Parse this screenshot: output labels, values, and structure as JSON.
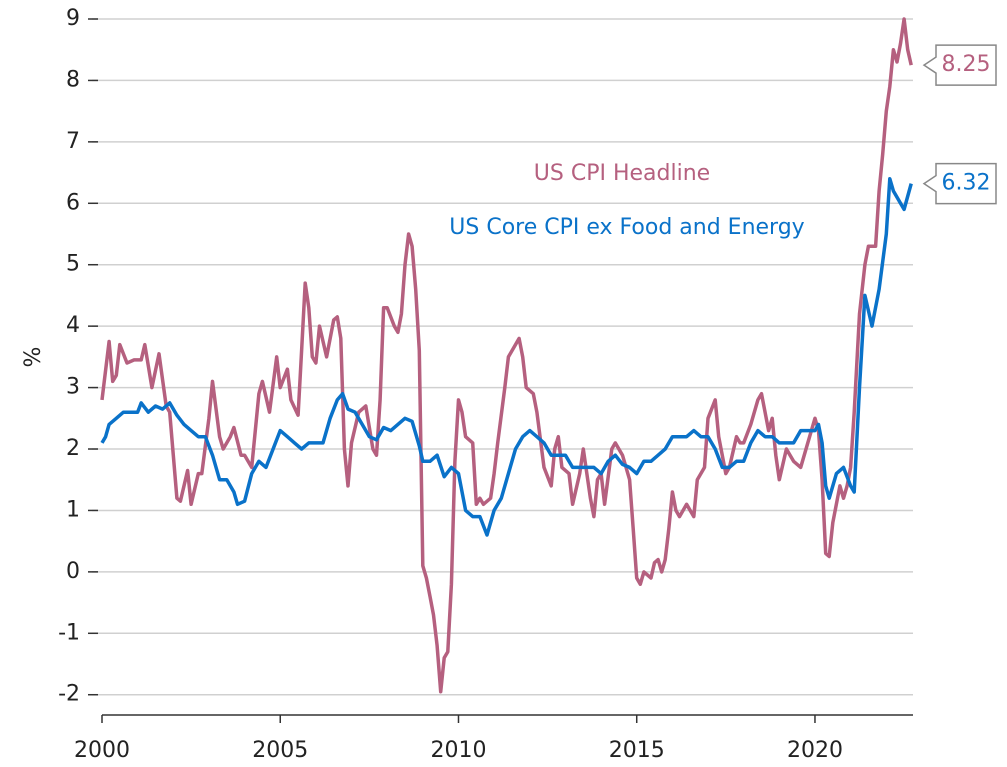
{
  "chart_data": {
    "type": "line",
    "y_label": "%",
    "annotations": [
      {
        "text": "US CPI Headline",
        "color": "#b5607f"
      },
      {
        "text": "US Core CPI ex Food and Energy",
        "color": "#0a72c9"
      }
    ],
    "xlim": [
      2000,
      2022.75
    ],
    "xticks": [
      2000,
      2005,
      2010,
      2015,
      2020
    ],
    "ylim": [
      -2.33,
      9
    ],
    "yticks": [
      -2,
      -1,
      0,
      1,
      2,
      3,
      4,
      5,
      6,
      7,
      8,
      9
    ],
    "grid": true,
    "series": [
      {
        "name": "US CPI Headline",
        "color": "#b5607f",
        "x": [
          2000.0,
          2000.2,
          2000.3,
          2000.4,
          2000.5,
          2000.7,
          2000.9,
          2001.1,
          2001.2,
          2001.4,
          2001.6,
          2001.8,
          2001.9,
          2002.0,
          2002.1,
          2002.2,
          2002.4,
          2002.5,
          2002.7,
          2002.8,
          2003.0,
          2003.1,
          2003.3,
          2003.4,
          2003.6,
          2003.7,
          2003.9,
          2004.0,
          2004.2,
          2004.4,
          2004.5,
          2004.7,
          2004.9,
          2005.0,
          2005.2,
          2005.3,
          2005.5,
          2005.6,
          2005.7,
          2005.8,
          2005.9,
          2006.0,
          2006.1,
          2006.3,
          2006.5,
          2006.6,
          2006.7,
          2006.8,
          2006.9,
          2007.0,
          2007.2,
          2007.4,
          2007.6,
          2007.7,
          2007.8,
          2007.9,
          2008.0,
          2008.2,
          2008.3,
          2008.4,
          2008.5,
          2008.6,
          2008.7,
          2008.8,
          2008.9,
          2009.0,
          2009.1,
          2009.2,
          2009.3,
          2009.4,
          2009.5,
          2009.6,
          2009.7,
          2009.8,
          2009.9,
          2010.0,
          2010.1,
          2010.2,
          2010.4,
          2010.5,
          2010.6,
          2010.7,
          2010.9,
          2011.0,
          2011.1,
          2011.3,
          2011.4,
          2011.6,
          2011.7,
          2011.8,
          2011.9,
          2012.1,
          2012.2,
          2012.4,
          2012.6,
          2012.7,
          2012.8,
          2012.9,
          2013.1,
          2013.2,
          2013.4,
          2013.5,
          2013.7,
          2013.8,
          2013.9,
          2014.0,
          2014.1,
          2014.3,
          2014.4,
          2014.6,
          2014.8,
          2014.9,
          2015.0,
          2015.1,
          2015.2,
          2015.4,
          2015.5,
          2015.6,
          2015.7,
          2015.8,
          2015.9,
          2016.0,
          2016.1,
          2016.2,
          2016.4,
          2016.6,
          2016.7,
          2016.9,
          2017.0,
          2017.2,
          2017.3,
          2017.5,
          2017.6,
          2017.8,
          2017.9,
          2018.0,
          2018.2,
          2018.4,
          2018.5,
          2018.7,
          2018.8,
          2018.9,
          2019.0,
          2019.2,
          2019.4,
          2019.6,
          2019.8,
          2020.0,
          2020.1,
          2020.2,
          2020.3,
          2020.4,
          2020.5,
          2020.7,
          2020.8,
          2020.9,
          2021.0,
          2021.1,
          2021.25,
          2021.4,
          2021.5,
          2021.7,
          2021.8,
          2021.9,
          2022.0,
          2022.1,
          2022.2,
          2022.3,
          2022.4,
          2022.5,
          2022.6,
          2022.7
        ],
        "values": [
          2.8,
          3.75,
          3.1,
          3.2,
          3.7,
          3.4,
          3.45,
          3.45,
          3.7,
          3.0,
          3.55,
          2.7,
          2.6,
          1.9,
          1.2,
          1.15,
          1.65,
          1.1,
          1.6,
          1.6,
          2.5,
          3.1,
          2.2,
          2.0,
          2.2,
          2.35,
          1.9,
          1.9,
          1.7,
          2.9,
          3.1,
          2.6,
          3.5,
          3.0,
          3.3,
          2.8,
          2.55,
          3.6,
          4.7,
          4.3,
          3.5,
          3.4,
          4.0,
          3.5,
          4.1,
          4.15,
          3.8,
          2.0,
          1.4,
          2.1,
          2.6,
          2.7,
          2.0,
          1.9,
          2.8,
          4.3,
          4.3,
          4.0,
          3.9,
          4.2,
          5.0,
          5.5,
          5.3,
          4.6,
          3.6,
          0.1,
          -0.1,
          -0.4,
          -0.7,
          -1.2,
          -1.95,
          -1.4,
          -1.3,
          -0.2,
          1.8,
          2.8,
          2.6,
          2.2,
          2.1,
          1.1,
          1.2,
          1.1,
          1.2,
          1.6,
          2.1,
          3.0,
          3.5,
          3.7,
          3.8,
          3.5,
          3.0,
          2.9,
          2.6,
          1.7,
          1.4,
          2.0,
          2.2,
          1.7,
          1.6,
          1.1,
          1.6,
          2.0,
          1.2,
          0.9,
          1.5,
          1.6,
          1.1,
          2.0,
          2.1,
          1.9,
          1.5,
          0.7,
          -0.1,
          -0.2,
          0.0,
          -0.1,
          0.15,
          0.2,
          0.0,
          0.2,
          0.7,
          1.3,
          1.0,
          0.9,
          1.1,
          0.9,
          1.5,
          1.7,
          2.5,
          2.8,
          2.2,
          1.6,
          1.7,
          2.2,
          2.1,
          2.1,
          2.4,
          2.8,
          2.9,
          2.3,
          2.5,
          1.9,
          1.5,
          2.0,
          1.8,
          1.7,
          2.1,
          2.5,
          2.3,
          1.5,
          0.3,
          0.25,
          0.8,
          1.4,
          1.2,
          1.4,
          1.7,
          2.6,
          4.2,
          5.0,
          5.3,
          5.3,
          6.2,
          6.8,
          7.5,
          7.9,
          8.5,
          8.3,
          8.6,
          9.0,
          8.5,
          8.25
        ]
      },
      {
        "name": "US Core CPI ex Food and Energy",
        "color": "#0a72c9",
        "x": [
          2000.0,
          2000.1,
          2000.2,
          2000.4,
          2000.6,
          2000.8,
          2001.0,
          2001.1,
          2001.3,
          2001.5,
          2001.7,
          2001.9,
          2002.1,
          2002.3,
          2002.5,
          2002.7,
          2002.9,
          2003.1,
          2003.3,
          2003.5,
          2003.7,
          2003.8,
          2004.0,
          2004.2,
          2004.4,
          2004.6,
          2004.8,
          2005.0,
          2005.2,
          2005.4,
          2005.6,
          2005.8,
          2006.0,
          2006.2,
          2006.4,
          2006.6,
          2006.75,
          2006.9,
          2007.1,
          2007.3,
          2007.5,
          2007.7,
          2007.9,
          2008.1,
          2008.3,
          2008.5,
          2008.7,
          2008.9,
          2009.0,
          2009.2,
          2009.4,
          2009.6,
          2009.8,
          2010.0,
          2010.2,
          2010.4,
          2010.6,
          2010.8,
          2011.0,
          2011.2,
          2011.4,
          2011.6,
          2011.8,
          2012.0,
          2012.2,
          2012.4,
          2012.6,
          2012.8,
          2013.0,
          2013.2,
          2013.4,
          2013.6,
          2013.8,
          2014.0,
          2014.2,
          2014.4,
          2014.6,
          2014.8,
          2015.0,
          2015.2,
          2015.4,
          2015.6,
          2015.8,
          2016.0,
          2016.2,
          2016.4,
          2016.6,
          2016.8,
          2017.0,
          2017.2,
          2017.4,
          2017.6,
          2017.8,
          2018.0,
          2018.2,
          2018.4,
          2018.6,
          2018.8,
          2019.0,
          2019.2,
          2019.4,
          2019.6,
          2019.8,
          2020.0,
          2020.1,
          2020.2,
          2020.3,
          2020.4,
          2020.6,
          2020.8,
          2021.0,
          2021.1,
          2021.25,
          2021.4,
          2021.6,
          2021.8,
          2022.0,
          2022.1,
          2022.2,
          2022.4,
          2022.5,
          2022.7
        ],
        "values": [
          2.1,
          2.2,
          2.4,
          2.5,
          2.6,
          2.6,
          2.6,
          2.75,
          2.6,
          2.7,
          2.65,
          2.75,
          2.55,
          2.4,
          2.3,
          2.2,
          2.2,
          1.9,
          1.5,
          1.5,
          1.3,
          1.1,
          1.15,
          1.6,
          1.8,
          1.7,
          2.0,
          2.3,
          2.2,
          2.1,
          2.0,
          2.1,
          2.1,
          2.1,
          2.5,
          2.8,
          2.9,
          2.65,
          2.6,
          2.4,
          2.2,
          2.15,
          2.35,
          2.3,
          2.4,
          2.5,
          2.45,
          2.05,
          1.8,
          1.8,
          1.9,
          1.55,
          1.7,
          1.6,
          1.0,
          0.9,
          0.9,
          0.6,
          1.0,
          1.2,
          1.6,
          2.0,
          2.2,
          2.3,
          2.2,
          2.1,
          1.9,
          1.9,
          1.9,
          1.7,
          1.7,
          1.7,
          1.7,
          1.6,
          1.8,
          1.9,
          1.75,
          1.7,
          1.6,
          1.8,
          1.8,
          1.9,
          2.0,
          2.2,
          2.2,
          2.2,
          2.3,
          2.2,
          2.2,
          2.0,
          1.7,
          1.7,
          1.8,
          1.8,
          2.1,
          2.3,
          2.2,
          2.2,
          2.1,
          2.1,
          2.1,
          2.3,
          2.3,
          2.3,
          2.4,
          2.1,
          1.4,
          1.2,
          1.6,
          1.7,
          1.4,
          1.3,
          3.0,
          4.5,
          4.0,
          4.6,
          5.5,
          6.4,
          6.2,
          6.0,
          5.9,
          6.32
        ]
      }
    ]
  }
}
